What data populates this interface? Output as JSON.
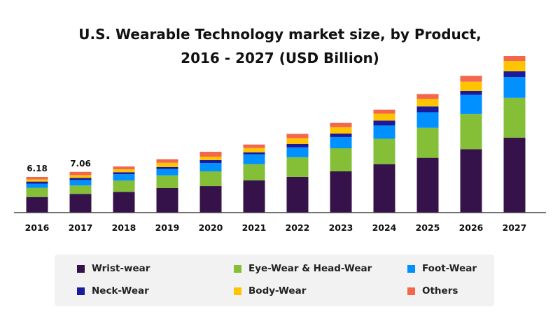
{
  "chart_data": {
    "type": "bar",
    "stacked": true,
    "title_lines": [
      "U.S. Wearable Technology market size, by Product,",
      "2016 - 2027 (USD Billion)"
    ],
    "xlabel": "",
    "ylabel": "",
    "categories": [
      "2016",
      "2017",
      "2018",
      "2019",
      "2020",
      "2021",
      "2022",
      "2023",
      "2024",
      "2025",
      "2026",
      "2027"
    ],
    "series": [
      {
        "name": "Wrist-wear",
        "color": "#36124a",
        "values": [
          2.7,
          3.25,
          3.6,
          4.25,
          4.6,
          5.6,
          6.2,
          7.15,
          8.4,
          9.5,
          11.0,
          13.0
        ]
      },
      {
        "name": "Eye-Wear & Head-Wear",
        "color": "#84bf37",
        "values": [
          1.6,
          1.45,
          1.95,
          2.2,
          2.55,
          2.8,
          3.4,
          4.0,
          4.4,
          5.2,
          6.1,
          6.9
        ]
      },
      {
        "name": "Foot-Wear",
        "color": "#0090ff",
        "values": [
          0.73,
          0.95,
          1.1,
          1.1,
          1.45,
          1.7,
          1.7,
          1.95,
          2.3,
          2.7,
          3.3,
          3.6
        ]
      },
      {
        "name": "Neck-Wear",
        "color": "#1a1a9a",
        "values": [
          0.35,
          0.35,
          0.35,
          0.35,
          0.5,
          0.35,
          0.6,
          0.6,
          0.85,
          1.0,
          0.7,
          1.0
        ]
      },
      {
        "name": "Body-Wear",
        "color": "#ffc400",
        "values": [
          0.38,
          0.5,
          0.5,
          0.75,
          0.6,
          0.75,
          1.0,
          1.1,
          1.2,
          1.3,
          1.6,
          1.8
        ]
      },
      {
        "name": "Others",
        "color": "#f2674e",
        "values": [
          0.42,
          0.56,
          0.5,
          0.6,
          0.85,
          0.6,
          0.75,
          0.75,
          0.7,
          0.85,
          1.0,
          0.85
        ]
      }
    ],
    "data_labels": [
      {
        "category": "2016",
        "text": "6.18"
      },
      {
        "category": "2017",
        "text": "7.06"
      }
    ],
    "ylim": [
      0,
      27.5
    ],
    "grid": false,
    "legend_position": "bottom"
  }
}
